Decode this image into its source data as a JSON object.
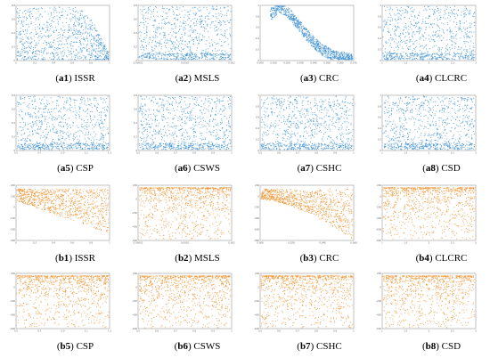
{
  "chart_data": [
    {
      "type": "scatter",
      "panel": "a1",
      "name": "ISSR",
      "color": "#3b8fd4",
      "pattern": "decay_right",
      "xticks": [
        "0",
        "0.2",
        "0.4",
        "0.6",
        "0.8",
        "1"
      ],
      "yticks": [
        "0.8",
        "0.6",
        "0.4",
        "0.2",
        "0"
      ]
    },
    {
      "type": "scatter",
      "panel": "a2",
      "name": "MSLS",
      "color": "#3b8fd4",
      "pattern": "uniform",
      "xticks": [
        "0.00002",
        "0.0002",
        "0.002"
      ],
      "yticks": [
        "0.8",
        "0.6",
        "0.4",
        "0.2",
        "0"
      ]
    },
    {
      "type": "scatter",
      "panel": "a3",
      "name": "CRC",
      "color": "#3b8fd4",
      "pattern": "bell",
      "xticks": [
        "0.008",
        "0.018",
        "0.028",
        "0.038",
        "0.048",
        "0.058",
        "0.068",
        "0.078"
      ],
      "yticks": [
        "1",
        "0.8",
        "0.6",
        "0.4",
        "0.2",
        "0"
      ]
    },
    {
      "type": "scatter",
      "panel": "a4",
      "name": "CLCRC",
      "color": "#3b8fd4",
      "pattern": "uniform",
      "xticks": [
        "1",
        "1.5",
        "2",
        "2.5",
        "3"
      ],
      "yticks": [
        "1",
        "0.8",
        "0.6",
        "0.4",
        "0.2",
        "0"
      ]
    },
    {
      "type": "scatter",
      "panel": "a5",
      "name": "CSP",
      "color": "#3b8fd4",
      "pattern": "uniform",
      "xticks": [
        "0.5",
        "0.7",
        "0.9",
        "1.1",
        "1.3"
      ],
      "yticks": [
        "0.8",
        "0.6",
        "0.4",
        "0.2",
        "0"
      ]
    },
    {
      "type": "scatter",
      "panel": "a6",
      "name": "CSWS",
      "color": "#3b8fd4",
      "pattern": "uniform",
      "xticks": [
        "0.5",
        "0.6",
        "0.7",
        "0.8",
        "0.9",
        "1"
      ],
      "yticks": [
        "0.8",
        "0.6",
        "0.4",
        "0.2",
        "0"
      ]
    },
    {
      "type": "scatter",
      "panel": "a7",
      "name": "CSHC",
      "color": "#3b8fd4",
      "pattern": "uniform",
      "xticks": [
        "0.5",
        "0.6",
        "0.7",
        "0.8",
        "0.9",
        "1"
      ],
      "yticks": [
        "1",
        "0.8",
        "0.6",
        "0.4",
        "0.2",
        "0"
      ]
    },
    {
      "type": "scatter",
      "panel": "a8",
      "name": "CSD",
      "color": "#3b8fd4",
      "pattern": "uniform",
      "xticks": [
        "1",
        "1.5",
        "2",
        "2.5",
        "3"
      ],
      "yticks": [
        "1",
        "0.8",
        "0.6",
        "0.4",
        "0.2",
        "0"
      ]
    },
    {
      "type": "scatter",
      "panel": "b1",
      "name": "ISSR",
      "color": "#f0902a",
      "pattern": "wedge",
      "xticks": [
        "0",
        "0.2",
        "0.4",
        "0.6",
        "0.8",
        "1"
      ],
      "yticks": [
        "200",
        "100",
        "0",
        "-100",
        "-200",
        "-300"
      ]
    },
    {
      "type": "scatter",
      "panel": "b2",
      "name": "MSLS",
      "color": "#f0902a",
      "pattern": "top",
      "xticks": [
        "0.00002",
        "0.0002",
        "0.002"
      ],
      "yticks": [
        "200",
        "0",
        "-200",
        "-400",
        "-600"
      ]
    },
    {
      "type": "scatter",
      "panel": "b3",
      "name": "CRC",
      "color": "#f0902a",
      "pattern": "droop",
      "xticks": [
        "0.008",
        "0.028",
        "0.048",
        "0.068"
      ],
      "yticks": [
        "200",
        "0",
        "-200",
        "-400",
        "-600",
        "-800"
      ]
    },
    {
      "type": "scatter",
      "panel": "b4",
      "name": "CLCRC",
      "color": "#f0902a",
      "pattern": "top",
      "xticks": [
        "1",
        "1.5",
        "2",
        "2.5",
        "3"
      ],
      "yticks": [
        "200",
        "0",
        "-200",
        "-400",
        "-600",
        "-800"
      ]
    },
    {
      "type": "scatter",
      "panel": "b5",
      "name": "CSP",
      "color": "#f0902a",
      "pattern": "top",
      "xticks": [
        "0.5",
        "0.7",
        "0.9",
        "1.1",
        "1.3"
      ],
      "yticks": [
        "200",
        "0",
        "-200",
        "-400",
        "-600"
      ]
    },
    {
      "type": "scatter",
      "panel": "b6",
      "name": "CSWS",
      "color": "#f0902a",
      "pattern": "top",
      "xticks": [
        "0.5",
        "0.6",
        "0.7",
        "0.8",
        "0.9",
        "1"
      ],
      "yticks": [
        "200",
        "0",
        "-200",
        "-400",
        "-600"
      ]
    },
    {
      "type": "scatter",
      "panel": "b7",
      "name": "CSHC",
      "color": "#f0902a",
      "pattern": "top",
      "xticks": [
        "0.5",
        "0.6",
        "0.7",
        "0.8",
        "0.9",
        "1"
      ],
      "yticks": [
        "200",
        "0",
        "-200",
        "-400",
        "-600"
      ]
    },
    {
      "type": "scatter",
      "panel": "b8",
      "name": "CSD",
      "color": "#f0902a",
      "pattern": "top",
      "xticks": [
        "1",
        "1.5",
        "2",
        "2.5",
        "3"
      ],
      "yticks": [
        "200",
        "0",
        "-200",
        "-400",
        "-600"
      ]
    }
  ]
}
